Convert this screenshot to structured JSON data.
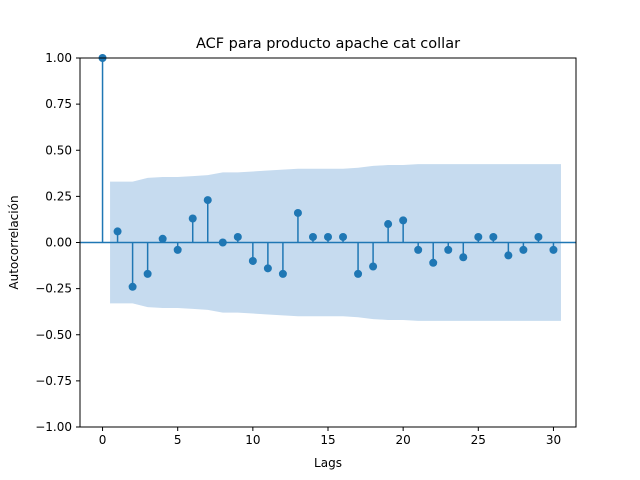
{
  "chart_data": {
    "type": "stem",
    "title": "ACF para producto apache cat collar",
    "xlabel": "Lags",
    "ylabel": "Autocorrelación",
    "xlim": [
      -1.5,
      31.5
    ],
    "ylim": [
      -1.0,
      1.0
    ],
    "xticks": [
      0,
      5,
      10,
      15,
      20,
      25,
      30
    ],
    "yticks": [
      -1.0,
      -0.75,
      -0.5,
      -0.25,
      0.0,
      0.25,
      0.5,
      0.75,
      1.0
    ],
    "ytick_labels": [
      "−1.00",
      "−0.75",
      "−0.50",
      "−0.25",
      "0.00",
      "0.25",
      "0.50",
      "0.75",
      "1.00"
    ],
    "xtick_labels": [
      "0",
      "5",
      "10",
      "15",
      "20",
      "25",
      "30"
    ],
    "grid": false,
    "colors": {
      "stem": "#1f77b4",
      "band": "#c6dbef",
      "zero_line": "#1f77b4"
    },
    "lags": [
      0,
      1,
      2,
      3,
      4,
      5,
      6,
      7,
      8,
      9,
      10,
      11,
      12,
      13,
      14,
      15,
      16,
      17,
      18,
      19,
      20,
      21,
      22,
      23,
      24,
      25,
      26,
      27,
      28,
      29,
      30
    ],
    "acf": [
      1.0,
      0.06,
      -0.24,
      -0.17,
      0.02,
      -0.04,
      0.13,
      0.23,
      0.0,
      0.03,
      -0.1,
      -0.14,
      -0.17,
      0.16,
      0.03,
      0.03,
      0.03,
      -0.17,
      -0.13,
      0.1,
      0.12,
      -0.04,
      -0.11,
      -0.04,
      -0.08,
      0.03,
      0.03,
      -0.07,
      -0.04,
      0.03,
      -0.04
    ],
    "confidence_band": {
      "lags": [
        0.5,
        1,
        2,
        3,
        4,
        5,
        6,
        7,
        8,
        9,
        10,
        11,
        12,
        13,
        14,
        15,
        16,
        17,
        18,
        19,
        20,
        21,
        22,
        23,
        24,
        25,
        26,
        27,
        28,
        29,
        30.5
      ],
      "upper": [
        0.33,
        0.33,
        0.33,
        0.35,
        0.355,
        0.355,
        0.36,
        0.365,
        0.38,
        0.38,
        0.385,
        0.39,
        0.395,
        0.4,
        0.4,
        0.4,
        0.4,
        0.405,
        0.415,
        0.42,
        0.42,
        0.425,
        0.425,
        0.425,
        0.425,
        0.425,
        0.425,
        0.425,
        0.425,
        0.425,
        0.425
      ],
      "lower": [
        -0.33,
        -0.33,
        -0.33,
        -0.35,
        -0.355,
        -0.355,
        -0.36,
        -0.365,
        -0.38,
        -0.38,
        -0.385,
        -0.39,
        -0.395,
        -0.4,
        -0.4,
        -0.4,
        -0.4,
        -0.405,
        -0.415,
        -0.42,
        -0.42,
        -0.425,
        -0.425,
        -0.425,
        -0.425,
        -0.425,
        -0.425,
        -0.425,
        -0.425,
        -0.425,
        -0.425
      ]
    }
  }
}
